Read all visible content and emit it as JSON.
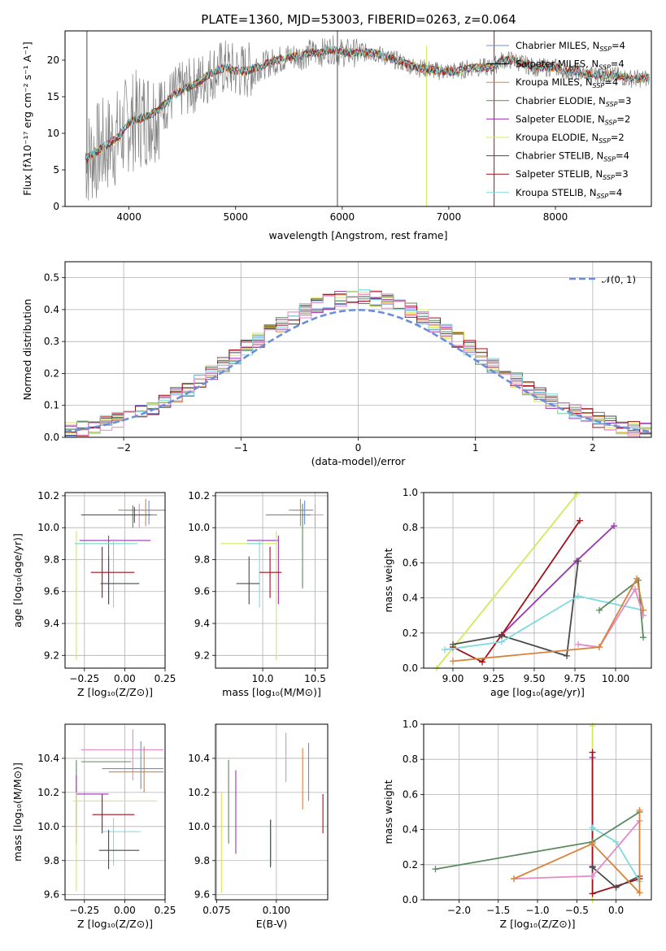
{
  "palette": {
    "chabrier_miles": "#6a8fd8",
    "salpeter_miles": "#000000",
    "kroupa_miles": "#d9833a",
    "chabrier_elodie": "#5a8a5e",
    "salpeter_elodie": "#9b35b3",
    "kroupa_elodie": "#d4e85a",
    "chabrier_stelib": "#4a4a4a",
    "salpeter_stelib": "#a0101a",
    "kroupa_stelib": "#7fd9e0",
    "hist_extra": "#e38ac9",
    "gaussian": "#6a8fd8",
    "spectrum_data": "#808080"
  },
  "chart_data": [
    {
      "id": "spectrum",
      "type": "line",
      "title": "PLATE=1360, MJD=53003, FIBERID=0263, z=0.064",
      "xlabel": "wavelength [Angstrom, rest frame]",
      "ylabel": "Flux [fλ10⁻¹⁷ erg cm⁻² s⁻¹ A⁻¹]",
      "xlim": [
        3400,
        8900
      ],
      "ylim": [
        0,
        24
      ],
      "xticks": [
        "4000",
        "5000",
        "6000",
        "7000",
        "8000"
      ],
      "yticks": [
        "0",
        "5",
        "10",
        "15",
        "20"
      ],
      "legend_position": "top-right",
      "legend": [
        {
          "main": "Chabrier MILES, N",
          "sub": "SSP",
          "tail": "=4",
          "color_key": "chabrier_miles"
        },
        {
          "main": "Salpeter MILES, N",
          "sub": "SSP",
          "tail": "=4",
          "color_key": "salpeter_miles"
        },
        {
          "main": "Kroupa MILES, N",
          "sub": "SSP",
          "tail": "=4",
          "color_key": "kroupa_miles"
        },
        {
          "main": "Chabrier ELODIE, N",
          "sub": "SSP",
          "tail": "=3",
          "color_key": "chabrier_elodie"
        },
        {
          "main": "Salpeter ELODIE, N",
          "sub": "SSP",
          "tail": "=2",
          "color_key": "salpeter_elodie"
        },
        {
          "main": "Kroupa ELODIE, N",
          "sub": "SSP",
          "tail": "=2",
          "color_key": "kroupa_elodie"
        },
        {
          "main": "Chabrier STELIB, N",
          "sub": "SSP",
          "tail": "=4",
          "color_key": "chabrier_stelib"
        },
        {
          "main": "Salpeter STELIB, N",
          "sub": "SSP",
          "tail": "=3",
          "color_key": "salpeter_stelib"
        },
        {
          "main": "Kroupa STELIB, N",
          "sub": "SSP",
          "tail": "=4",
          "color_key": "kroupa_stelib"
        }
      ],
      "model_continuum": {
        "x": [
          3600,
          3700,
          3800,
          3900,
          4000,
          4100,
          4200,
          4300,
          4400,
          4500,
          4600,
          4700,
          4800,
          4900,
          5000,
          5100,
          5200,
          5300,
          5400,
          5500,
          5600,
          5700,
          5800,
          5900,
          6000,
          6100,
          6200,
          6300,
          6400,
          6500,
          6600,
          6700,
          6800,
          6900,
          7000,
          7100,
          7200,
          7300,
          7400,
          7500,
          7600,
          7700,
          7800,
          7900,
          8000,
          8100,
          8200,
          8300,
          8400,
          8500,
          8600,
          8700,
          8800
        ],
        "y": [
          6.5,
          7.5,
          8.5,
          9.5,
          11.5,
          12.0,
          12.5,
          13.5,
          15.0,
          16.0,
          16.5,
          17.5,
          18.5,
          19.0,
          18.5,
          18.5,
          19.0,
          19.5,
          20.0,
          20.5,
          20.5,
          21.0,
          21.0,
          21.5,
          21.0,
          21.0,
          21.0,
          21.0,
          20.5,
          20.0,
          19.5,
          19.0,
          18.8,
          18.5,
          18.5,
          18.5,
          19.0,
          19.0,
          19.0,
          20.0,
          20.0,
          19.5,
          19.0,
          19.0,
          19.0,
          18.5,
          18.5,
          18.0,
          18.0,
          18.0,
          17.8,
          17.5,
          17.5
        ]
      }
    },
    {
      "id": "residuals",
      "type": "bar",
      "xlabel": "(data-model)/error",
      "ylabel": "Normed distribution",
      "xlim": [
        -2.5,
        2.5
      ],
      "ylim": [
        0,
        0.55
      ],
      "xticks": [
        "−2",
        "−1",
        "0",
        "1",
        "2"
      ],
      "xtick_values": [
        -2,
        -1,
        0,
        1,
        2
      ],
      "yticks": [
        "0.0",
        "0.1",
        "0.2",
        "0.3",
        "0.4",
        "0.5"
      ],
      "ytick_values": [
        0,
        0.1,
        0.2,
        0.3,
        0.4,
        0.5
      ],
      "grid": true,
      "legend_position": "top-right",
      "legend": [
        {
          "label": "𝒩(0, 1)",
          "color_key": "gaussian"
        }
      ],
      "bin_width": 0.1
    },
    {
      "id": "age_vs_Z",
      "type": "scatter",
      "xlabel": "Z [log₁₀(Z/Z⊙)]",
      "ylabel": "age  [log₁₀(age/yr)]",
      "xlim": [
        -0.37,
        0.25
      ],
      "ylim": [
        9.12,
        10.22
      ],
      "xticks": [
        "−0.25",
        "0.00",
        "0.25"
      ],
      "xtick_values": [
        -0.25,
        0,
        0.25
      ],
      "yticks": [
        "9.2",
        "9.4",
        "9.6",
        "9.8",
        "10.0",
        "10.2"
      ],
      "ytick_values": [
        9.2,
        9.4,
        9.6,
        9.8,
        10.0,
        10.2
      ],
      "grid": true,
      "points": [
        {
          "color_key": "chabrier_miles",
          "x": 0.15,
          "xlo": 0.0,
          "xhi": 0.25,
          "y": 10.11,
          "ylo": 10.02,
          "yhi": 10.17
        },
        {
          "color_key": "kroupa_miles",
          "x": 0.13,
          "xlo": -0.04,
          "xhi": 0.25,
          "y": 10.11,
          "ylo": 10.01,
          "yhi": 10.18
        },
        {
          "color_key": "hist_extra",
          "x": 0.09,
          "xlo": -0.02,
          "xhi": 0.2,
          "y": 10.08,
          "ylo": 10.0,
          "yhi": 10.15
        },
        {
          "color_key": "chabrier_elodie",
          "x": 0.05,
          "xlo": -0.27,
          "xhi": 0.2,
          "y": 10.08,
          "ylo": 10.0,
          "yhi": 10.14
        },
        {
          "color_key": "chabrier_stelib",
          "x": 0.06,
          "xlo": -0.27,
          "xhi": 0.16,
          "y": 10.08,
          "ylo": 10.03,
          "yhi": 10.13
        },
        {
          "color_key": "salpeter_elodie",
          "x": -0.1,
          "xlo": -0.28,
          "xhi": 0.16,
          "y": 9.92,
          "ylo": 9.52,
          "yhi": 9.95
        },
        {
          "color_key": "kroupa_elodie",
          "x": -0.3,
          "xlo": -0.31,
          "xhi": 0.03,
          "y": 9.9,
          "ylo": 9.17,
          "yhi": 9.98
        },
        {
          "color_key": "kroupa_stelib",
          "x": -0.07,
          "xlo": -0.31,
          "xhi": 0.08,
          "y": 9.9,
          "ylo": 9.5,
          "yhi": 9.93
        },
        {
          "color_key": "salpeter_stelib",
          "x": -0.14,
          "xlo": -0.21,
          "xhi": 0.06,
          "y": 9.72,
          "ylo": 9.56,
          "yhi": 9.88
        },
        {
          "color_key": "chabrier_stelib",
          "x": -0.1,
          "xlo": -0.15,
          "xhi": 0.09,
          "y": 9.65,
          "ylo": 9.52,
          "yhi": 9.82
        }
      ]
    },
    {
      "id": "age_vs_mass",
      "type": "scatter",
      "xlabel": "mass [log₁₀(M/M⊙)]",
      "xlim": [
        9.55,
        10.62
      ],
      "ylim": [
        9.12,
        10.22
      ],
      "xticks": [
        "10.0",
        "10.5"
      ],
      "xtick_values": [
        10.0,
        10.5
      ],
      "yticks": [
        "9.2",
        "9.4",
        "9.6",
        "9.8",
        "10.0",
        "10.2"
      ],
      "ytick_values": [
        9.2,
        9.4,
        9.6,
        9.8,
        10.0,
        10.2
      ],
      "grid": true,
      "points": [
        {
          "color_key": "chabrier_miles",
          "x": 10.4,
          "xlo": 10.28,
          "xhi": 10.48,
          "y": 10.11,
          "ylo": 10.02,
          "yhi": 10.17
        },
        {
          "color_key": "kroupa_miles",
          "x": 10.36,
          "xlo": 10.25,
          "xhi": 10.46,
          "y": 10.11,
          "ylo": 10.01,
          "yhi": 10.18
        },
        {
          "color_key": "hist_extra",
          "x": 10.5,
          "xlo": 10.33,
          "xhi": 10.58,
          "y": 10.08,
          "ylo": 10.0,
          "yhi": 10.15
        },
        {
          "color_key": "chabrier_elodie",
          "x": 10.38,
          "xlo": 10.03,
          "xhi": 10.46,
          "y": 10.08,
          "ylo": 9.62,
          "yhi": 10.15
        },
        {
          "color_key": "salpeter_elodie",
          "x": 10.15,
          "xlo": 9.85,
          "xhi": 10.15,
          "y": 9.92,
          "ylo": 9.52,
          "yhi": 9.95
        },
        {
          "color_key": "kroupa_elodie",
          "x": 10.13,
          "xlo": 9.6,
          "xhi": 10.13,
          "y": 9.9,
          "ylo": 9.17,
          "yhi": 9.98
        },
        {
          "color_key": "kroupa_stelib",
          "x": 9.97,
          "xlo": 9.85,
          "xhi": 10.0,
          "y": 9.9,
          "ylo": 9.5,
          "yhi": 9.93
        },
        {
          "color_key": "salpeter_stelib",
          "x": 10.07,
          "xlo": 9.97,
          "xhi": 10.18,
          "y": 9.72,
          "ylo": 9.56,
          "yhi": 9.88
        },
        {
          "color_key": "chabrier_stelib",
          "x": 9.87,
          "xlo": 9.75,
          "xhi": 9.97,
          "y": 9.65,
          "ylo": 9.52,
          "yhi": 9.82
        }
      ]
    },
    {
      "id": "weight_vs_age",
      "type": "line",
      "xlabel": "age  [log₁₀(age/yr)]",
      "ylabel": "mass weight",
      "xlim": [
        8.82,
        10.22
      ],
      "ylim": [
        0,
        1
      ],
      "xticks": [
        "9.00",
        "9.25",
        "9.50",
        "9.75",
        "10.00"
      ],
      "xtick_values": [
        9.0,
        9.25,
        9.5,
        9.75,
        10.0
      ],
      "yticks": [
        "0.0",
        "0.2",
        "0.4",
        "0.6",
        "0.8",
        "1.0"
      ],
      "ytick_values": [
        0,
        0.2,
        0.4,
        0.6,
        0.8,
        1.0
      ],
      "grid": true,
      "series": [
        {
          "color_key": "kroupa_elodie",
          "x": [
            8.9,
            9.76
          ],
          "y": [
            0.0,
            0.99
          ]
        },
        {
          "color_key": "salpeter_elodie",
          "x": [
            9.3,
            9.76,
            9.99
          ],
          "y": [
            0.19,
            0.61,
            0.81
          ]
        },
        {
          "color_key": "salpeter_stelib",
          "x": [
            9.0,
            9.18,
            9.3,
            9.78
          ],
          "y": [
            0.12,
            0.035,
            0.19,
            0.84
          ]
        },
        {
          "color_key": "chabrier_stelib",
          "x": [
            9.0,
            9.3,
            9.7,
            9.77
          ],
          "y": [
            0.135,
            0.185,
            0.07,
            0.61
          ]
        },
        {
          "color_key": "kroupa_stelib",
          "x": [
            8.95,
            9.3,
            9.77,
            10.17
          ],
          "y": [
            0.105,
            0.15,
            0.41,
            0.33
          ]
        },
        {
          "color_key": "chabrier_elodie",
          "x": [
            9.9,
            10.14,
            10.17
          ],
          "y": [
            0.33,
            0.5,
            0.175
          ]
        },
        {
          "color_key": "hist_extra",
          "x": [
            9.77,
            9.9,
            10.12,
            10.17
          ],
          "y": [
            0.135,
            0.12,
            0.45,
            0.3
          ]
        },
        {
          "color_key": "kroupa_miles",
          "x": [
            9.0,
            9.9,
            10.13,
            10.17
          ],
          "y": [
            0.04,
            0.12,
            0.51,
            0.33
          ]
        }
      ]
    },
    {
      "id": "mass_vs_Z",
      "type": "scatter",
      "xlabel": "Z [log₁₀(Z/Z⊙)]",
      "ylabel": "mass [log₁₀(M/M⊙)]",
      "xlim": [
        -0.37,
        0.25
      ],
      "ylim": [
        9.57,
        10.6
      ],
      "xticks": [
        "−0.25",
        "0.00",
        "0.25"
      ],
      "xtick_values": [
        -0.25,
        0,
        0.25
      ],
      "yticks": [
        "9.6",
        "9.8",
        "10.0",
        "10.2",
        "10.4"
      ],
      "ytick_values": [
        9.6,
        9.8,
        10.0,
        10.2,
        10.4
      ],
      "grid": true,
      "points": [
        {
          "color_key": "hist_extra",
          "x": 0.05,
          "xlo": -0.27,
          "xhi": 0.24,
          "y": 10.45,
          "ylo": 10.27,
          "yhi": 10.57
        },
        {
          "color_key": "chabrier_elodie",
          "x": -0.3,
          "xlo": -0.27,
          "xhi": 0.04,
          "y": 10.38,
          "ylo": 10.01,
          "yhi": 10.39
        },
        {
          "color_key": "chabrier_miles",
          "x": 0.1,
          "xlo": -0.14,
          "xhi": 0.24,
          "y": 10.34,
          "ylo": 10.22,
          "yhi": 10.5
        },
        {
          "color_key": "kroupa_miles",
          "x": 0.12,
          "xlo": -0.1,
          "xhi": 0.24,
          "y": 10.32,
          "ylo": 10.2,
          "yhi": 10.47
        },
        {
          "color_key": "salpeter_elodie",
          "x": -0.3,
          "xlo": -0.3,
          "xhi": -0.1,
          "y": 10.19,
          "ylo": 9.9,
          "yhi": 10.3
        },
        {
          "color_key": "kroupa_elodie",
          "x": -0.3,
          "xlo": -0.32,
          "xhi": 0.2,
          "y": 10.15,
          "ylo": 9.62,
          "yhi": 10.2
        },
        {
          "color_key": "salpeter_stelib",
          "x": -0.14,
          "xlo": -0.2,
          "xhi": 0.06,
          "y": 10.07,
          "ylo": 9.96,
          "yhi": 10.19
        },
        {
          "color_key": "kroupa_stelib",
          "x": -0.07,
          "xlo": -0.14,
          "xhi": 0.1,
          "y": 9.97,
          "ylo": 9.77,
          "yhi": 10.05
        },
        {
          "color_key": "chabrier_stelib",
          "x": -0.1,
          "xlo": -0.16,
          "xhi": 0.09,
          "y": 9.86,
          "ylo": 9.75,
          "yhi": 9.98
        }
      ]
    },
    {
      "id": "mass_vs_ebv",
      "type": "scatter",
      "xlabel": "E(B-V)",
      "xlim": [
        0.0745,
        0.1215
      ],
      "ylim": [
        9.57,
        10.6
      ],
      "xticks": [
        "0.075",
        "0.100"
      ],
      "xtick_values": [
        0.075,
        0.1
      ],
      "yticks": [
        "9.6",
        "9.8",
        "10.0",
        "10.2",
        "10.4"
      ],
      "ytick_values": [
        9.6,
        9.8,
        10.0,
        10.2,
        10.4
      ],
      "grid": true,
      "points": [
        {
          "color_key": "kroupa_elodie",
          "x": 0.077,
          "ylo": 9.61,
          "yhi": 10.2
        },
        {
          "color_key": "chabrier_elodie",
          "x": 0.08,
          "ylo": 9.9,
          "yhi": 10.39
        },
        {
          "color_key": "salpeter_elodie",
          "x": 0.083,
          "ylo": 9.84,
          "yhi": 10.33
        },
        {
          "color_key": "chabrier_stelib",
          "x": 0.0975,
          "ylo": 9.76,
          "yhi": 10.04
        },
        {
          "color_key": "kroupa_stelib",
          "x": 0.0978,
          "ylo": 9.77,
          "yhi": 10.04
        },
        {
          "color_key": "hist_extra",
          "x": 0.104,
          "ylo": 10.26,
          "yhi": 10.55
        },
        {
          "color_key": "kroupa_miles",
          "x": 0.111,
          "ylo": 10.1,
          "yhi": 10.46
        },
        {
          "color_key": "chabrier_miles",
          "x": 0.1135,
          "ylo": 10.15,
          "yhi": 10.49
        },
        {
          "color_key": "salpeter_stelib",
          "x": 0.1195,
          "ylo": 9.96,
          "yhi": 10.19
        }
      ]
    },
    {
      "id": "weight_vs_Z",
      "type": "line",
      "xlabel": "Z [log₁₀(Z/Z⊙)]",
      "ylabel": "mass weight",
      "xlim": [
        -2.45,
        0.45
      ],
      "ylim": [
        0,
        1
      ],
      "xticks": [
        "−2.0",
        "−1.5",
        "−1.0",
        "−0.5",
        "0.0"
      ],
      "xtick_values": [
        -2.0,
        -1.5,
        -1.0,
        -0.5,
        0.0
      ],
      "yticks": [
        "0.0",
        "0.2",
        "0.4",
        "0.6",
        "0.8",
        "1.0"
      ],
      "ytick_values": [
        0,
        0.2,
        0.4,
        0.6,
        0.8,
        1.0
      ],
      "grid": true,
      "series": [
        {
          "color_key": "kroupa_elodie",
          "x": [
            -0.3,
            -0.3
          ],
          "y": [
            0.0,
            0.99
          ]
        },
        {
          "color_key": "salpeter_elodie",
          "x": [
            -0.3,
            -0.3
          ],
          "y": [
            0.19,
            0.81
          ]
        },
        {
          "color_key": "salpeter_stelib",
          "x": [
            -0.3,
            -0.3,
            0.3
          ],
          "y": [
            0.84,
            0.035,
            0.12
          ]
        },
        {
          "color_key": "chabrier_stelib",
          "x": [
            -0.3,
            0.0,
            0.3
          ],
          "y": [
            0.185,
            0.07,
            0.135
          ]
        },
        {
          "color_key": "kroupa_stelib",
          "x": [
            -0.3,
            0.0,
            0.3
          ],
          "y": [
            0.41,
            0.33,
            0.105
          ]
        },
        {
          "color_key": "chabrier_elodie",
          "x": [
            -2.3,
            -0.3,
            0.3
          ],
          "y": [
            0.175,
            0.33,
            0.5
          ]
        },
        {
          "color_key": "hist_extra",
          "x": [
            -1.3,
            -0.3,
            0.3
          ],
          "y": [
            0.12,
            0.135,
            0.45
          ]
        },
        {
          "color_key": "kroupa_miles",
          "x": [
            -1.3,
            -0.3,
            0.3,
            0.3
          ],
          "y": [
            0.12,
            0.32,
            0.04,
            0.51
          ]
        }
      ]
    }
  ]
}
